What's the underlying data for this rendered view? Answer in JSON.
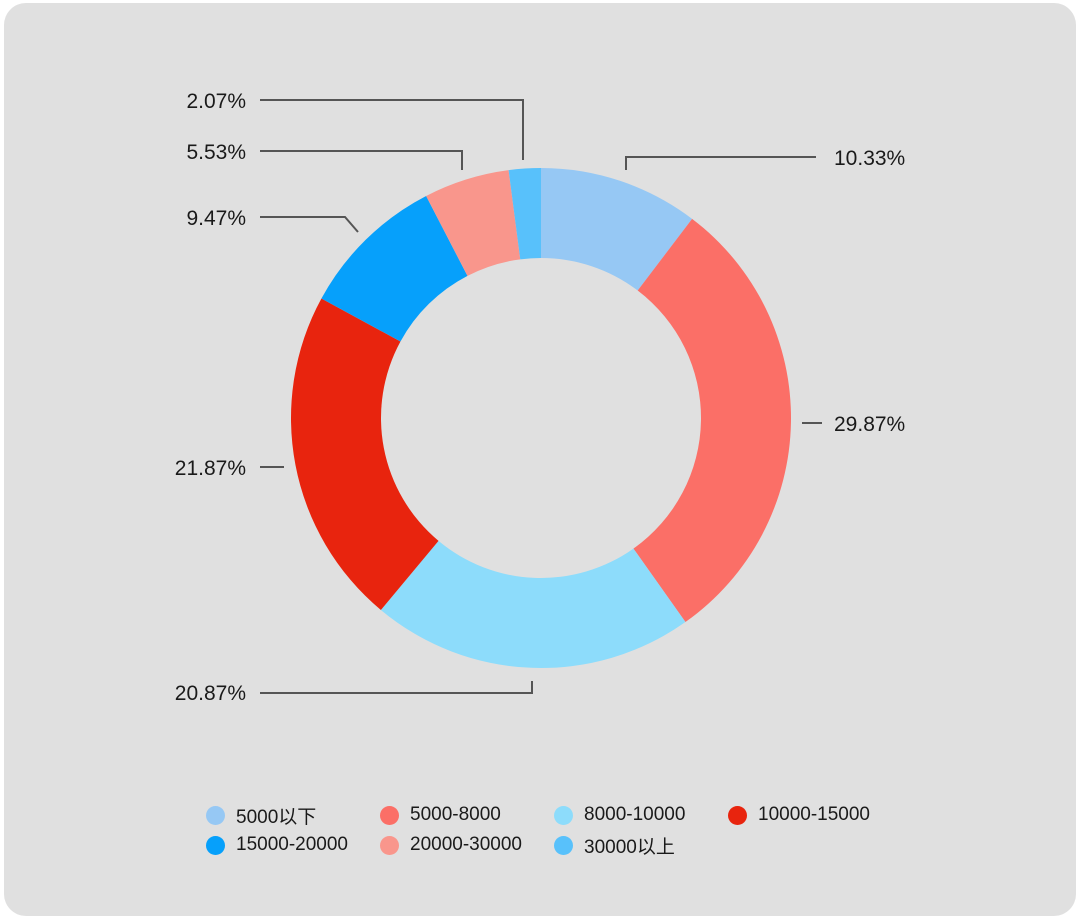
{
  "chart_data": {
    "type": "pie",
    "donut": true,
    "start_angle_deg": 0,
    "direction": "clockwise",
    "categories": [
      "5000以下",
      "5000-8000",
      "8000-10000",
      "10000-15000",
      "15000-20000",
      "20000-30000",
      "30000以上"
    ],
    "values": [
      10.33,
      29.87,
      20.87,
      21.87,
      9.47,
      5.53,
      2.07
    ],
    "labels": [
      "10.33%",
      "29.87%",
      "20.87%",
      "21.87%",
      "9.47%",
      "5.53%",
      "2.07%"
    ],
    "colors": [
      "#96c8f4",
      "#fb6f67",
      "#8ddcfb",
      "#e8240e",
      "#06a0fb",
      "#f9968c",
      "#58c1fb"
    ],
    "legend_position": "bottom",
    "grid": false
  }
}
